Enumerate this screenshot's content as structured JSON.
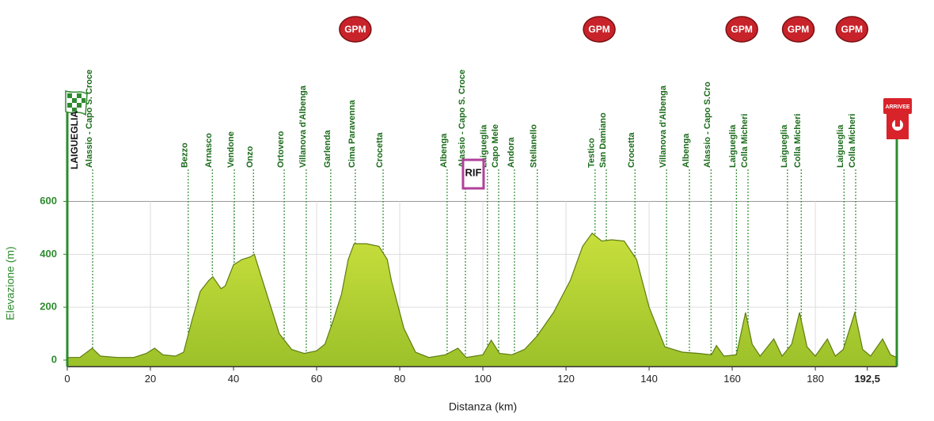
{
  "chart_data": {
    "type": "area",
    "x_label": "Distanza (km)",
    "y_label": "Elevazione (m)",
    "color": "#b2d235",
    "x": [
      0,
      3,
      6,
      8,
      12,
      16,
      19,
      21,
      23,
      26,
      28,
      30,
      32,
      34,
      35,
      37,
      38,
      40,
      42,
      44,
      45,
      47,
      49,
      51,
      54,
      57,
      60,
      62,
      64,
      66,
      67.6,
      69,
      70.5,
      72,
      75,
      77,
      78,
      81,
      83.8,
      87,
      91,
      94,
      96,
      100,
      102,
      104,
      107,
      110,
      113,
      117,
      121,
      124,
      126.3,
      128.6,
      131,
      134,
      137,
      140,
      143.8,
      148,
      152,
      155,
      156.2,
      158,
      161,
      163.2,
      164.8,
      166.7,
      170,
      172,
      174.3,
      176.2,
      178,
      180,
      182.9,
      184.8,
      186.7,
      189.5,
      191.4,
      193.3,
      196.2,
      198.1,
      199.6
    ],
    "values": [
      10,
      10,
      45,
      15,
      10,
      10,
      25,
      45,
      20,
      15,
      30,
      150,
      260,
      300,
      315,
      270,
      280,
      360,
      380,
      390,
      400,
      300,
      200,
      100,
      40,
      25,
      35,
      60,
      150,
      250,
      380,
      440,
      440,
      440,
      430,
      380,
      300,
      120,
      30,
      10,
      20,
      45,
      10,
      20,
      75,
      25,
      20,
      40,
      90,
      180,
      300,
      430,
      480,
      450,
      455,
      450,
      380,
      200,
      50,
      30,
      25,
      20,
      55,
      15,
      20,
      180,
      60,
      15,
      80,
      15,
      60,
      180,
      50,
      15,
      80,
      15,
      40,
      180,
      40,
      15,
      80,
      20,
      10
    ],
    "xlim": [
      0,
      199.6
    ],
    "ylim": [
      -25,
      600
    ],
    "xticks": [
      0,
      20,
      40,
      60,
      80,
      100,
      120,
      140,
      160,
      180,
      {
        "value": 192.5,
        "label": "192,5"
      }
    ],
    "yticks": [
      0,
      200,
      400,
      600
    ],
    "grid": true,
    "start_label": "LAIGUEGLIA",
    "finish_label": "ARRIVEE",
    "places": [
      {
        "name": "Alassio - Capo S. Croce",
        "x": 6.1
      },
      {
        "name": "Bezzo",
        "x": 29.1
      },
      {
        "name": "Arnasco",
        "x": 34.9
      },
      {
        "name": "Vendone",
        "x": 40.2
      },
      {
        "name": "Onzo",
        "x": 44.8
      },
      {
        "name": "Ortovero",
        "x": 52.2
      },
      {
        "name": "Villanova d'Albenga",
        "x": 57.5
      },
      {
        "name": "Garlenda",
        "x": 63.4
      },
      {
        "name": "Cima Paravenna",
        "x": 69.3
      },
      {
        "name": "Crocetta",
        "x": 76
      },
      {
        "name": "Albenga",
        "x": 91.4
      },
      {
        "name": "Alassio - Capo S. Croce",
        "x": 95.8
      },
      {
        "name": "Laigueglia",
        "x": 101.1
      },
      {
        "name": "Capo Mele",
        "x": 103.8
      },
      {
        "name": "Andora",
        "x": 107.6
      },
      {
        "name": "Stellanello",
        "x": 113.1
      },
      {
        "name": "Testico",
        "x": 127
      },
      {
        "name": "San Damiano",
        "x": 129.7
      },
      {
        "name": "Crocetta",
        "x": 136.6
      },
      {
        "name": "Villanova d'Albenga",
        "x": 144.2
      },
      {
        "name": "Albenga",
        "x": 149.7
      },
      {
        "name": "Alassio - Capo S.Cro",
        "x": 154.9
      },
      {
        "name": "Laigueglia",
        "x": 161
      },
      {
        "name": "Colla Micheri",
        "x": 163.8
      },
      {
        "name": "Laigueglia",
        "x": 173.3
      },
      {
        "name": "Colla Micheri",
        "x": 176.6
      },
      {
        "name": "Laigueglia",
        "x": 186.9
      },
      {
        "name": "Colla Micheri",
        "x": 189.7
      }
    ],
    "badges": [
      {
        "label": "GPM",
        "x": 69.3
      },
      {
        "label": "GPM",
        "x": 128
      },
      {
        "label": "GPM",
        "x": 162.3
      },
      {
        "label": "GPM",
        "x": 175.9
      },
      {
        "label": "GPM",
        "x": 188.8
      },
      {
        "label": "RIF",
        "x": 97.7
      }
    ]
  }
}
